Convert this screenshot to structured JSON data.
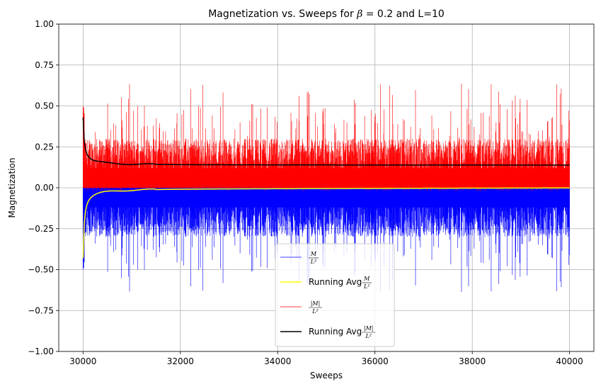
{
  "chart_data": {
    "type": "line",
    "title_text": "Magnetization vs. Sweeps for ",
    "title_beta": "β",
    "title_rest": " = 0.2 and L=10",
    "xlabel": "Sweeps",
    "ylabel": "Magnetization",
    "xlim": [
      29500,
      40500
    ],
    "ylim": [
      -1.0,
      1.0
    ],
    "x_ticks": [
      30000,
      32000,
      34000,
      36000,
      38000,
      40000
    ],
    "y_ticks": [
      -1.0,
      -0.75,
      -0.5,
      -0.25,
      0.0,
      0.25,
      0.5,
      0.75,
      1.0
    ],
    "x_tick_labels": [
      "30000",
      "32000",
      "34000",
      "36000",
      "38000",
      "40000"
    ],
    "y_tick_labels": [
      "−1.00",
      "−0.75",
      "−0.50",
      "−0.25",
      "0.00",
      "0.25",
      "0.50",
      "0.75",
      "1.00"
    ],
    "grid": true,
    "legend_position": "lower-center",
    "sweep_range": [
      30000,
      40000
    ],
    "series": [
      {
        "name": "M/L²",
        "color": "#0000ff",
        "style": "noise",
        "sign": -1,
        "typical_peak": 0.3,
        "max_peak": 0.64,
        "linewidth": 0.6
      },
      {
        "name": "Running Avg M/L²",
        "color": "#ffff00",
        "style": "running",
        "start": -0.43,
        "settle": -0.005,
        "final": 0.0,
        "linewidth": 1.5
      },
      {
        "name": "|M|/L²",
        "color": "#ff0000",
        "style": "noise",
        "sign": 1,
        "typical_peak": 0.3,
        "max_peak": 0.64,
        "linewidth": 0.6
      },
      {
        "name": "Running Avg |M|/L²",
        "color": "#000000",
        "style": "running",
        "start": 0.43,
        "settle": 0.138,
        "final": 0.138,
        "linewidth": 1.5
      }
    ]
  },
  "legend": [
    {
      "prefix": "",
      "num": "M",
      "den": "L²"
    },
    {
      "prefix": "Running Avg ",
      "num": "M",
      "den": "L²"
    },
    {
      "prefix": "",
      "num": "|M|",
      "den": "L²"
    },
    {
      "prefix": "Running Avg ",
      "num": "|M|",
      "den": "L²"
    }
  ]
}
